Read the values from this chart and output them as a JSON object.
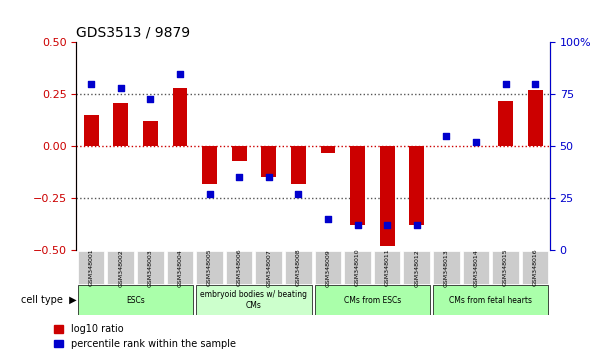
{
  "title": "GDS3513 / 9879",
  "samples": [
    "GSM348001",
    "GSM348002",
    "GSM348003",
    "GSM348004",
    "GSM348005",
    "GSM348006",
    "GSM348007",
    "GSM348008",
    "GSM348009",
    "GSM348010",
    "GSM348011",
    "GSM348012",
    "GSM348013",
    "GSM348014",
    "GSM348015",
    "GSM348016"
  ],
  "log10_ratio": [
    0.15,
    0.21,
    0.12,
    0.28,
    -0.18,
    -0.07,
    -0.15,
    -0.18,
    -0.03,
    -0.38,
    -0.48,
    -0.38,
    0.0,
    0.0,
    0.22,
    0.27
  ],
  "percentile_rank": [
    80,
    78,
    73,
    85,
    27,
    35,
    35,
    27,
    15,
    12,
    12,
    12,
    55,
    52,
    80,
    80
  ],
  "bar_color": "#cc0000",
  "dot_color": "#0000cc",
  "ylim_left": [
    -0.5,
    0.5
  ],
  "ylim_right": [
    0,
    100
  ],
  "yticks_left": [
    -0.5,
    -0.25,
    0,
    0.25,
    0.5
  ],
  "yticks_right": [
    0,
    25,
    50,
    75,
    100
  ],
  "hline_color": "#cc0000",
  "hline_style": "dotted",
  "dotted_color": "#555555",
  "cell_type_groups": [
    {
      "label": "ESCs",
      "start": 0,
      "end": 3,
      "color": "#aaffaa"
    },
    {
      "label": "embryoid bodies w/ beating\nCMs",
      "start": 4,
      "end": 7,
      "color": "#ccffcc"
    },
    {
      "label": "CMs from ESCs",
      "start": 8,
      "end": 11,
      "color": "#aaffaa"
    },
    {
      "label": "CMs from fetal hearts",
      "start": 12,
      "end": 15,
      "color": "#aaffaa"
    }
  ],
  "cell_type_label": "cell type",
  "legend_items": [
    {
      "label": "log10 ratio",
      "color": "#cc0000"
    },
    {
      "label": "percentile rank within the sample",
      "color": "#0000cc"
    }
  ],
  "background_color": "#ffffff",
  "plot_bg": "#ffffff",
  "bar_width": 0.5
}
